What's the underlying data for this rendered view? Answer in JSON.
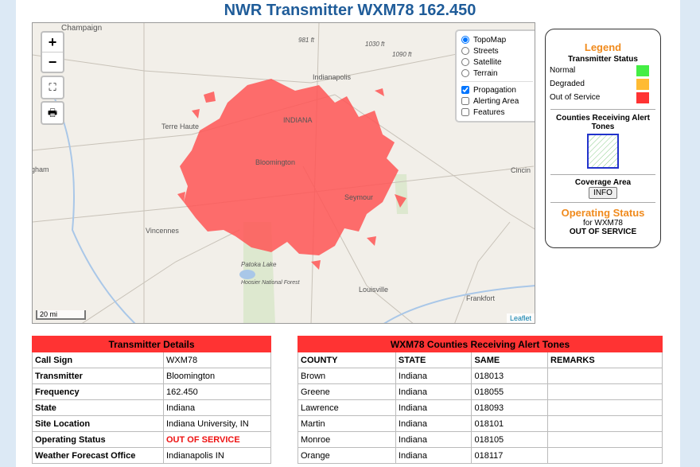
{
  "header": {
    "title": "NWR Transmitter WXM78 162.450"
  },
  "map": {
    "zoom_in": "+",
    "zoom_out": "−",
    "labels": [
      "Champaign",
      "981 ft",
      "1030 ft",
      "1090 ft",
      "Indianapolis",
      "INDIANA",
      "Terre Haute",
      "Bloomington",
      "Cincin",
      "gham",
      "Seymour",
      "Vincennes",
      "Patoka Lake",
      "Hoosier National Forest",
      "Louisville",
      "Frankfort"
    ],
    "scale": "20 mi",
    "attribution": "Leaflet"
  },
  "layers": {
    "base": [
      "TopoMap",
      "Streets",
      "Satellite",
      "Terrain"
    ],
    "overlays": [
      "Propagation",
      "Alerting Area",
      "Features"
    ]
  },
  "legend": {
    "title": "Legend",
    "status_title": "Transmitter Status",
    "statuses": [
      "Normal",
      "Degraded",
      "Out of Service"
    ],
    "counties_title": "Counties Receiving Alert Tones",
    "coverage_title": "Coverage Area",
    "info": "INFO",
    "operating_title": "Operating Status",
    "operating_for": "for WXM78",
    "operating_value": "OUT OF SERVICE"
  },
  "details": {
    "title": "Transmitter Details",
    "rows": [
      [
        "Call Sign",
        "WXM78"
      ],
      [
        "Transmitter",
        "Bloomington"
      ],
      [
        "Frequency",
        "162.450"
      ],
      [
        "State",
        "Indiana"
      ],
      [
        "Site Location",
        "Indiana University, IN"
      ],
      [
        "Operating Status",
        "OUT OF SERVICE"
      ],
      [
        "Weather Forecast Office",
        "Indianapolis IN"
      ]
    ]
  },
  "counties": {
    "title": "WXM78 Counties Receiving Alert Tones",
    "columns": [
      "COUNTY",
      "STATE",
      "SAME",
      "REMARKS"
    ],
    "rows": [
      [
        "Brown",
        "Indiana",
        "018013"
      ],
      [
        "Greene",
        "Indiana",
        "018055"
      ],
      [
        "Lawrence",
        "Indiana",
        "018093"
      ],
      [
        "Martin",
        "Indiana",
        "018101"
      ],
      [
        "Monroe",
        "Indiana",
        "018105"
      ],
      [
        "Orange",
        "Indiana",
        "018117"
      ]
    ]
  }
}
